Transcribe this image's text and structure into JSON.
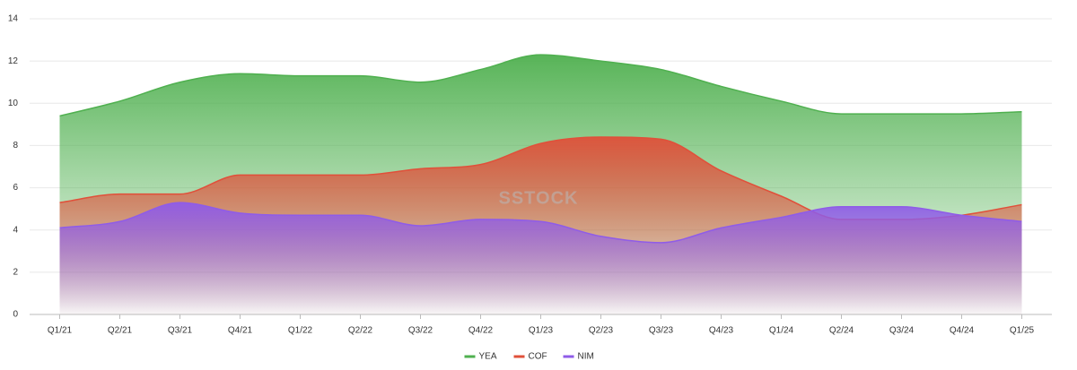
{
  "chart_data": {
    "type": "area",
    "watermark": "SSTOCK",
    "categories": [
      "Q1/21",
      "Q2/21",
      "Q3/21",
      "Q4/21",
      "Q1/22",
      "Q2/22",
      "Q3/22",
      "Q4/22",
      "Q1/23",
      "Q2/23",
      "Q3/23",
      "Q4/23",
      "Q1/24",
      "Q2/24",
      "Q3/24",
      "Q4/24",
      "Q1/25"
    ],
    "series": [
      {
        "name": "YEA",
        "color": "#4fb04f",
        "values": [
          9.4,
          10.1,
          11.0,
          11.4,
          11.3,
          11.3,
          11.0,
          11.6,
          12.3,
          12.0,
          11.6,
          10.8,
          10.1,
          9.5,
          9.5,
          9.5,
          9.6
        ]
      },
      {
        "name": "COF",
        "color": "#e0503a",
        "values": [
          5.3,
          5.7,
          5.7,
          6.6,
          6.6,
          6.6,
          6.9,
          7.1,
          8.1,
          8.4,
          8.3,
          6.8,
          5.6,
          4.5,
          4.5,
          4.7,
          5.2
        ]
      },
      {
        "name": "NIM",
        "color": "#8f5ce8",
        "values": [
          4.1,
          4.4,
          5.3,
          4.8,
          4.7,
          4.7,
          4.2,
          4.5,
          4.4,
          3.7,
          3.4,
          4.1,
          4.6,
          5.1,
          5.1,
          4.7,
          4.4
        ]
      }
    ],
    "ylim": [
      0,
      14
    ],
    "yticks": [
      0,
      2,
      4,
      6,
      8,
      10,
      12,
      14
    ],
    "grid": true,
    "legend": "bottom"
  }
}
